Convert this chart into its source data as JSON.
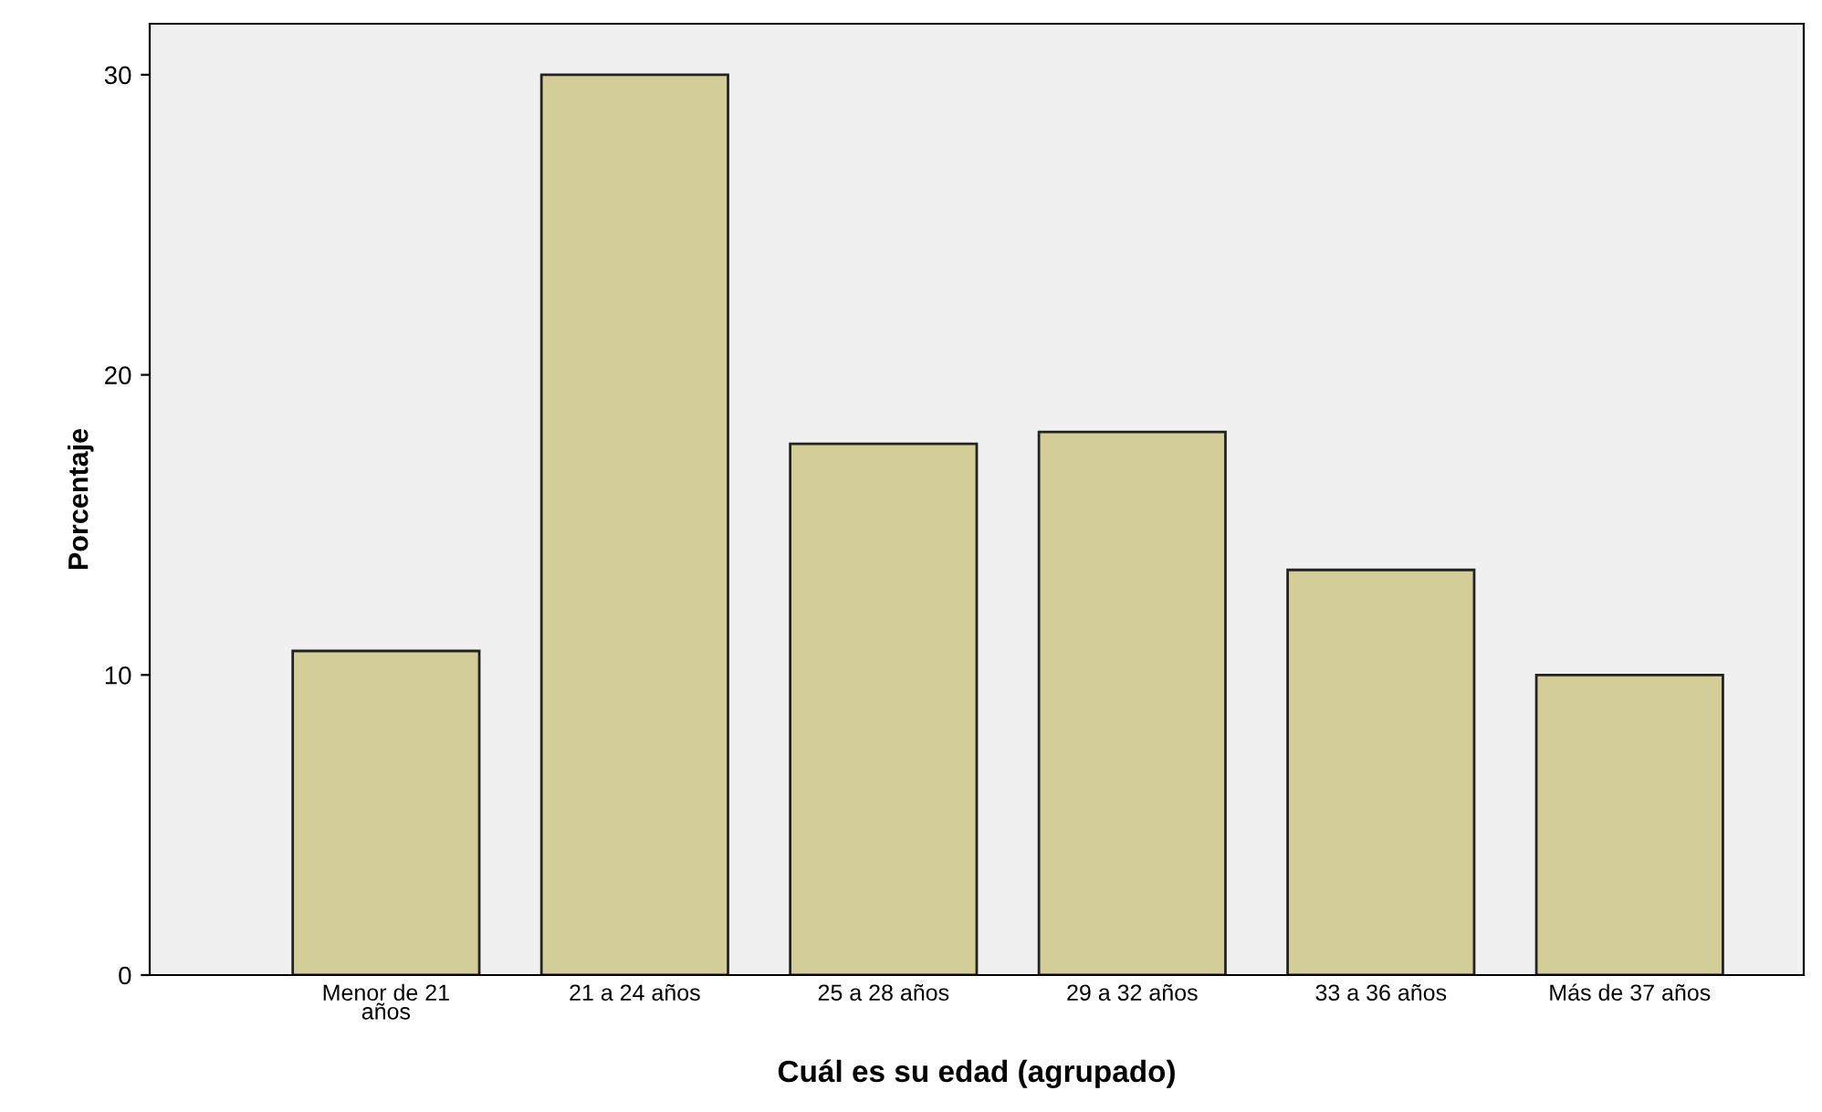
{
  "chart_data": {
    "type": "bar",
    "xlabel": "Cuál es su edad (agrupado)",
    "ylabel": "Porcentaje",
    "categories": [
      "Menor de 21\naños",
      "21 a 24 años",
      "25 a 28 años",
      "29 a 32 años",
      "33 a 36 años",
      "Más de 37 años"
    ],
    "values": [
      10.8,
      30.0,
      17.7,
      18.1,
      13.5,
      10.0
    ],
    "color": "#d3ce97",
    "ylim": [
      0,
      31.7
    ],
    "yticks": [
      0,
      10,
      20,
      30
    ],
    "grid": false,
    "legend": false
  }
}
